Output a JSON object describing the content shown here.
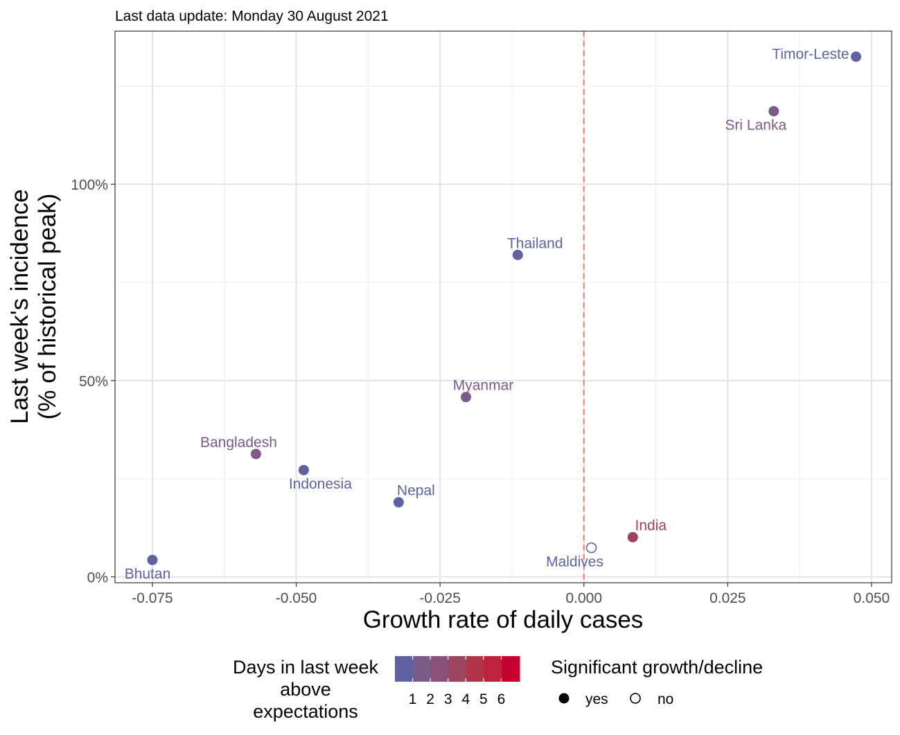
{
  "subtitle": "Last data update: Monday 30 August 2021",
  "chart_data": {
    "type": "scatter",
    "xlabel": "Growth rate of daily cases",
    "ylabel_lines": [
      "Last week's incidence",
      "(% of historical peak)"
    ],
    "xlim": [
      -0.0815,
      0.0535
    ],
    "ylim": [
      -0.015,
      1.39
    ],
    "x_ticks": [
      -0.075,
      -0.05,
      -0.025,
      0.0,
      0.025,
      0.05
    ],
    "x_tick_labels": [
      "-0.075",
      "-0.050",
      "-0.025",
      "0.000",
      "0.025",
      "0.050"
    ],
    "y_ticks": [
      0,
      0.5,
      1.0
    ],
    "y_tick_labels": [
      "0%",
      "50%",
      "100%"
    ],
    "grid": true,
    "reference_line": {
      "x": 0.0,
      "color": "#F8766D",
      "style": "dashed"
    },
    "points": [
      {
        "name": "Timor-Leste",
        "x": 0.0473,
        "y": 1.325,
        "days": 1,
        "significant": true,
        "label_pos": "left"
      },
      {
        "name": "Sri Lanka",
        "x": 0.033,
        "y": 1.186,
        "days": 2,
        "significant": true,
        "label_pos": "below-left"
      },
      {
        "name": "Thailand",
        "x": -0.0115,
        "y": 0.82,
        "days": 1,
        "significant": true,
        "label_pos": "above"
      },
      {
        "name": "Myanmar",
        "x": -0.0205,
        "y": 0.458,
        "days": 2,
        "significant": true,
        "label_pos": "above"
      },
      {
        "name": "Bangladesh",
        "x": -0.057,
        "y": 0.313,
        "days": 2,
        "significant": true,
        "label_pos": "above-left"
      },
      {
        "name": "Indonesia",
        "x": -0.0487,
        "y": 0.272,
        "days": 1,
        "significant": true,
        "label_pos": "below"
      },
      {
        "name": "Nepal",
        "x": -0.0322,
        "y": 0.19,
        "days": 1,
        "significant": true,
        "label_pos": "above"
      },
      {
        "name": "India",
        "x": 0.0085,
        "y": 0.101,
        "days": 4,
        "significant": true,
        "label_pos": "above"
      },
      {
        "name": "Maldives",
        "x": 0.0013,
        "y": 0.074,
        "days": 1,
        "significant": false,
        "label_pos": "below"
      },
      {
        "name": "Bhutan",
        "x": -0.075,
        "y": 0.043,
        "days": 1,
        "significant": true,
        "label_pos": "below"
      }
    ],
    "color_scale": {
      "title_lines": [
        "Days in last week",
        "above",
        "expectations"
      ],
      "ticks": [
        1,
        2,
        3,
        4,
        5,
        6
      ],
      "colors": [
        "#5E63A0",
        "#7A5C8A",
        "#8C4F7A",
        "#A0435F",
        "#B13448",
        "#C0223B",
        "#C6002F"
      ],
      "day_colors": {
        "1": "#5E63A0",
        "2": "#7C5A8A",
        "3": "#8E4E75",
        "4": "#A0425F",
        "5": "#B1314A",
        "6": "#C0223B"
      }
    },
    "shape_legend": {
      "title": "Significant growth/decline",
      "items": [
        {
          "label": "yes",
          "filled": true
        },
        {
          "label": "no",
          "filled": false
        }
      ]
    }
  }
}
